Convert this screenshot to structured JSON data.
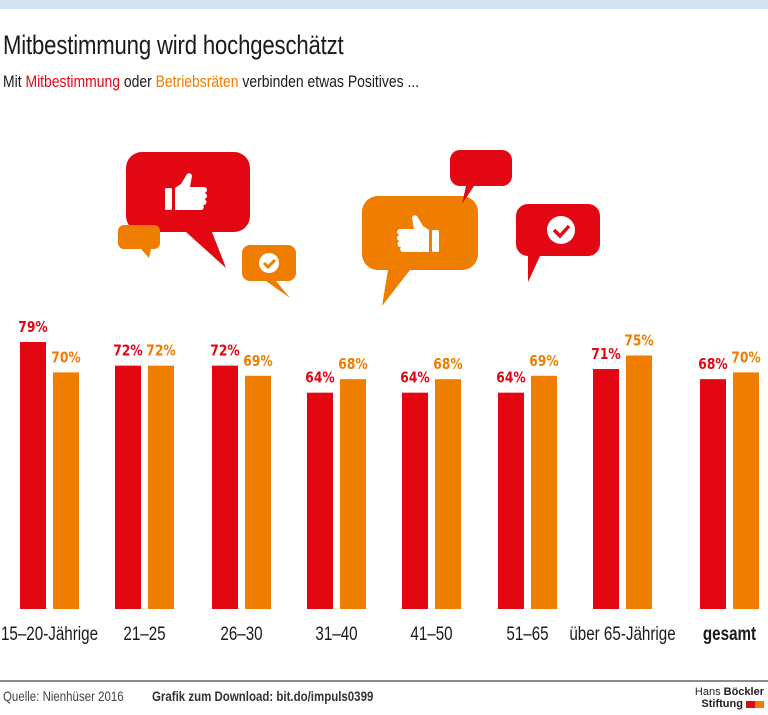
{
  "header": {
    "title": "Mitbestimmung wird hochgeschätzt",
    "subtitle_prefix": "Mit ",
    "subtitle_term1": "Mitbestimmung",
    "subtitle_mid": " oder ",
    "subtitle_term2": "Betriebsräten",
    "subtitle_suffix": " verbinden etwas Positives ..."
  },
  "colors": {
    "mitbestimmung": "#e30613",
    "betriebsraete": "#ef7d00",
    "topbar": "#cfe4ee"
  },
  "illustration": {
    "icons": [
      "speech-bubble-thumbs-up-icon",
      "speech-bubble-icon",
      "speech-bubble-check-icon"
    ]
  },
  "chart_data": {
    "type": "bar",
    "title": "Mitbestimmung wird hochgeschätzt",
    "subtitle": "Mit Mitbestimmung oder Betriebsräten verbinden etwas Positives ...",
    "xlabel": "",
    "ylabel": "",
    "ylim": [
      0,
      100
    ],
    "grid": false,
    "legend": "in-subtitle",
    "categories": [
      "15–20-Jährige",
      "21–25",
      "26–30",
      "31–40",
      "41–50",
      "51–65",
      "über 65-Jährige",
      "gesamt"
    ],
    "category_bold": [
      false,
      false,
      false,
      false,
      false,
      false,
      false,
      true
    ],
    "series": [
      {
        "name": "Mitbestimmung",
        "color": "#e30613",
        "values": [
          79,
          72,
          72,
          64,
          64,
          64,
          71,
          68
        ],
        "labels": [
          "79%",
          "72%",
          "72%",
          "64%",
          "64%",
          "64%",
          "71%",
          "68%"
        ]
      },
      {
        "name": "Betriebsräten",
        "color": "#ef7d00",
        "values": [
          70,
          72,
          69,
          68,
          68,
          69,
          75,
          70
        ],
        "labels": [
          "70%",
          "72%",
          "69%",
          "68%",
          "68%",
          "69%",
          "75%",
          "70%"
        ]
      }
    ]
  },
  "footer": {
    "source": "Quelle: Nienhüser 2016",
    "download": "Grafik zum Download: bit.do/impuls0399",
    "logo_line1_light": "Hans ",
    "logo_line1_bold": "Böckler",
    "logo_line2": "Stiftung"
  }
}
